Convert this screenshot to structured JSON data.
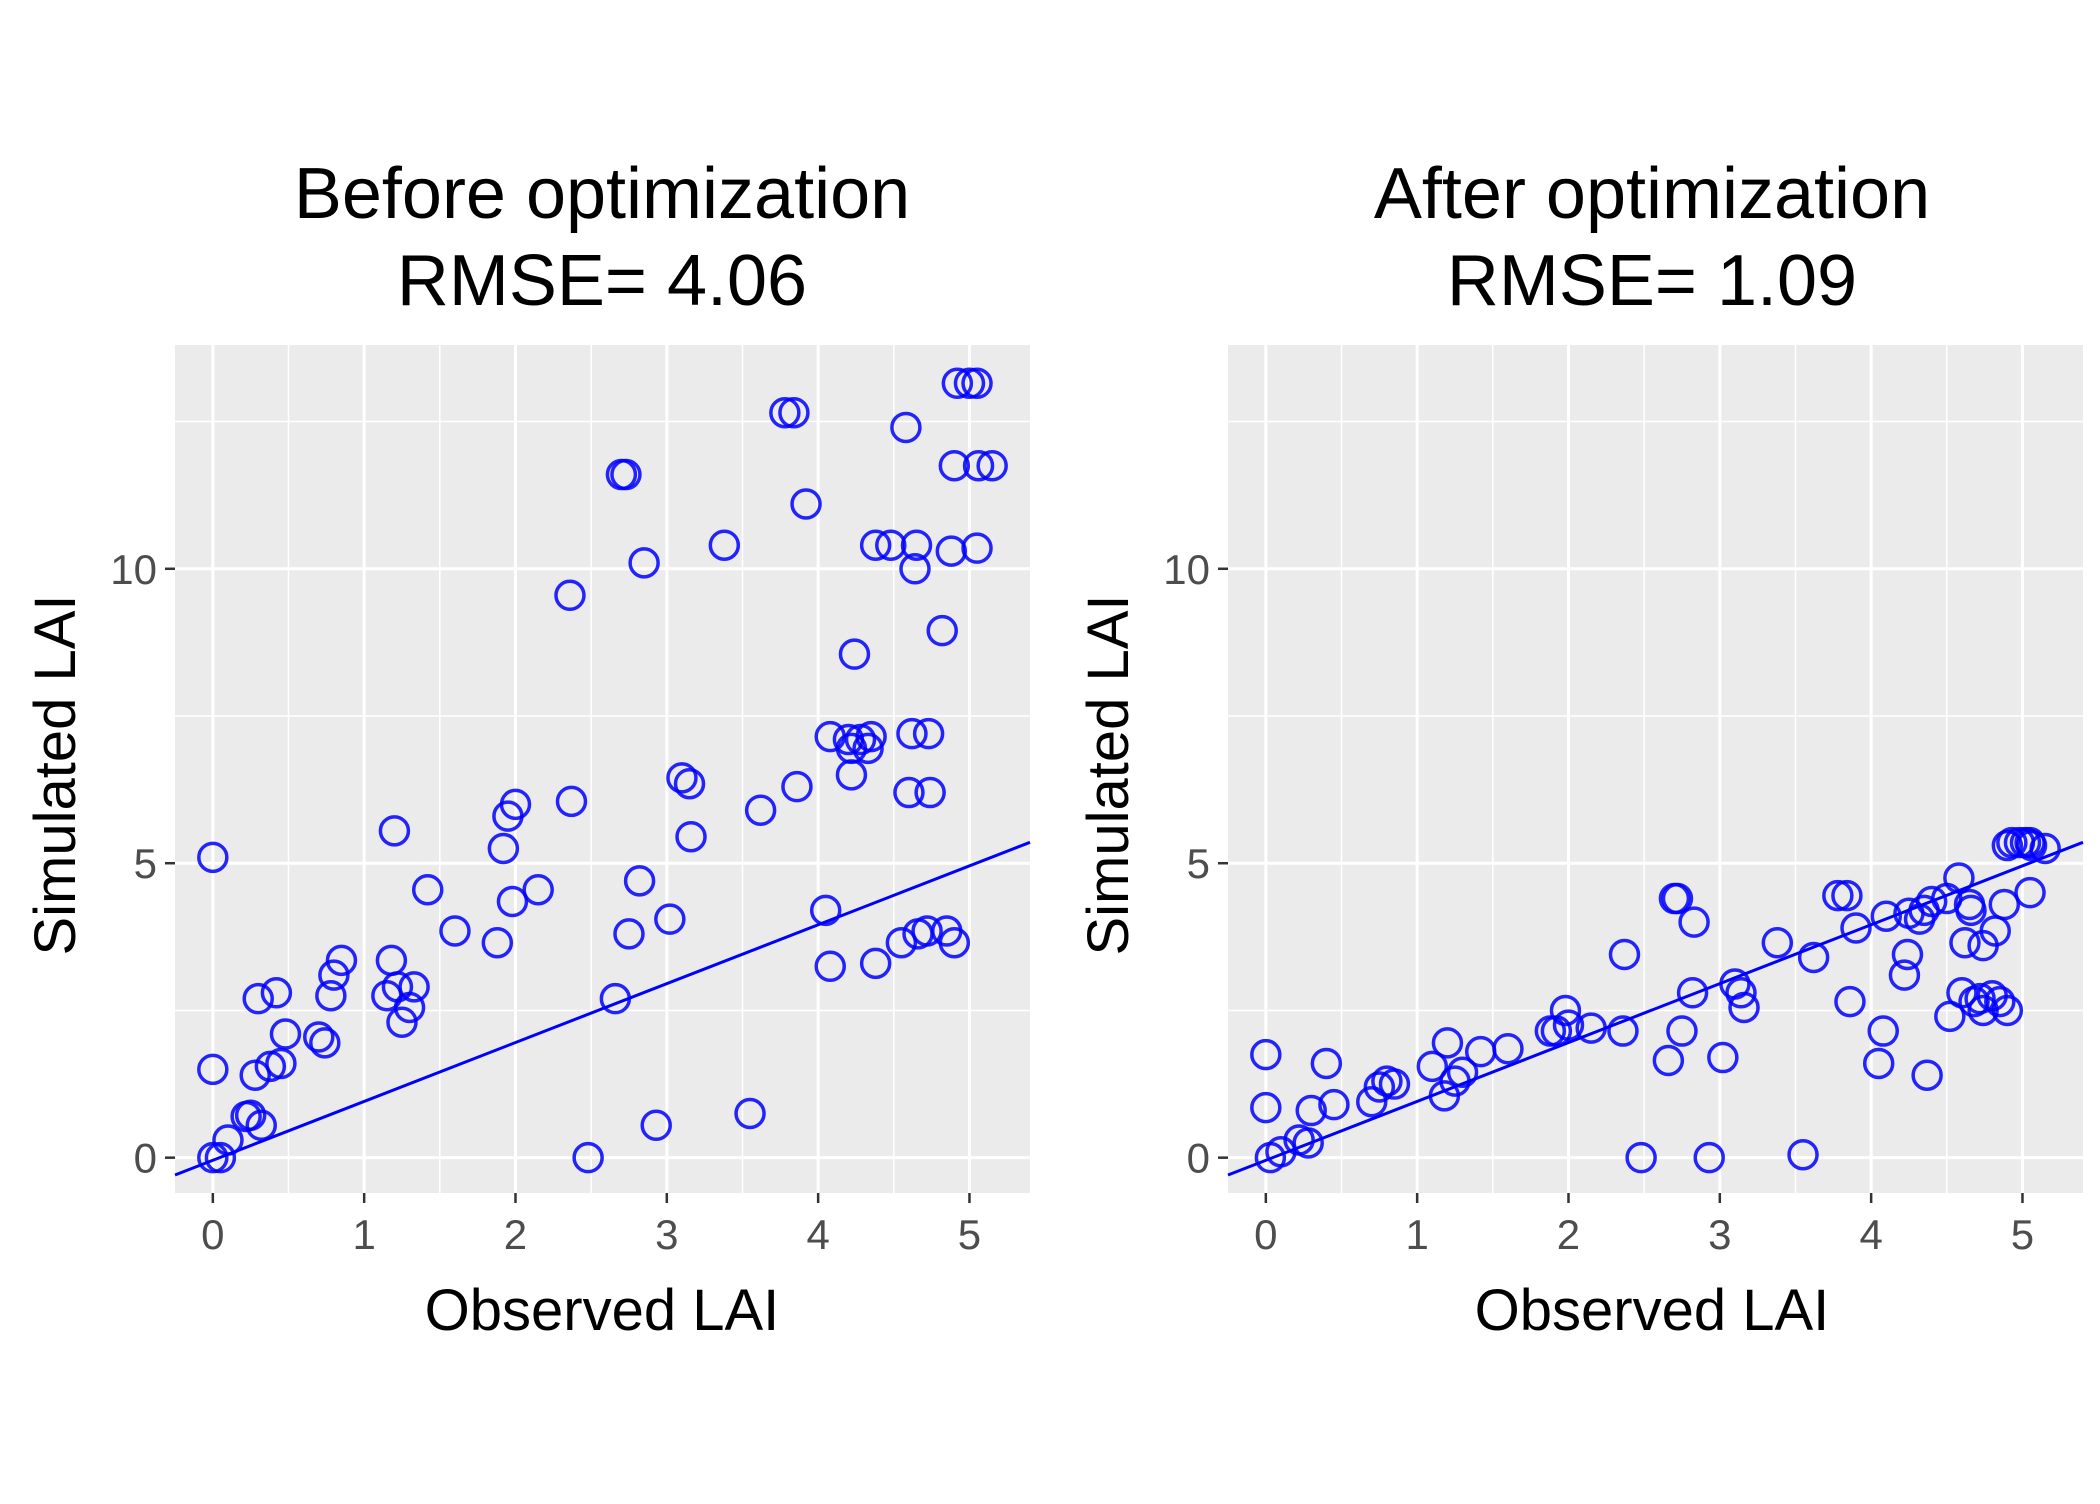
{
  "chart_data": [
    {
      "type": "scatter",
      "title": "Before optimization",
      "subtitle": "RMSE= 4.06",
      "xlabel": "Observed LAI",
      "ylabel": "Simulated LAI",
      "xlim": [
        -0.25,
        5.4
      ],
      "ylim": [
        -0.6,
        13.8
      ],
      "x_ticks": [
        "0",
        "1",
        "2",
        "3",
        "4",
        "5"
      ],
      "y_ticks": [
        "0",
        "5",
        "10"
      ],
      "grid": true,
      "legend": "none",
      "point_color": "#0000ff",
      "line_color": "#0000ff",
      "fit_line": {
        "intercept": -0.045,
        "slope": 1.0
      },
      "points": [
        [
          0.0,
          5.1
        ],
        [
          0.0,
          1.5
        ],
        [
          0.05,
          0.0
        ],
        [
          0.0,
          0.0
        ],
        [
          0.1,
          0.3
        ],
        [
          0.22,
          0.7
        ],
        [
          0.25,
          0.72
        ],
        [
          0.32,
          0.55
        ],
        [
          0.28,
          1.4
        ],
        [
          0.3,
          2.7
        ],
        [
          0.42,
          2.8
        ],
        [
          0.38,
          1.55
        ],
        [
          0.45,
          1.6
        ],
        [
          0.48,
          2.1
        ],
        [
          0.7,
          2.05
        ],
        [
          0.74,
          1.95
        ],
        [
          0.78,
          2.75
        ],
        [
          0.8,
          3.1
        ],
        [
          0.85,
          3.35
        ],
        [
          1.15,
          2.75
        ],
        [
          1.18,
          3.35
        ],
        [
          1.22,
          2.9
        ],
        [
          1.25,
          2.3
        ],
        [
          1.3,
          2.55
        ],
        [
          1.33,
          2.9
        ],
        [
          1.2,
          5.55
        ],
        [
          1.42,
          4.55
        ],
        [
          1.6,
          3.85
        ],
        [
          1.88,
          3.65
        ],
        [
          1.92,
          5.25
        ],
        [
          1.95,
          5.8
        ],
        [
          2.0,
          6.0
        ],
        [
          1.98,
          4.35
        ],
        [
          2.15,
          4.55
        ],
        [
          2.36,
          9.55
        ],
        [
          2.37,
          6.05
        ],
        [
          2.48,
          0.0
        ],
        [
          2.66,
          2.7
        ],
        [
          2.7,
          11.6
        ],
        [
          2.73,
          11.6
        ],
        [
          2.75,
          3.8
        ],
        [
          2.82,
          4.7
        ],
        [
          2.85,
          10.1
        ],
        [
          2.93,
          0.55
        ],
        [
          3.02,
          4.05
        ],
        [
          3.1,
          6.45
        ],
        [
          3.15,
          6.35
        ],
        [
          3.16,
          5.45
        ],
        [
          3.38,
          10.4
        ],
        [
          3.55,
          0.75
        ],
        [
          3.62,
          5.9
        ],
        [
          3.78,
          12.65
        ],
        [
          3.84,
          12.65
        ],
        [
          3.86,
          6.3
        ],
        [
          3.92,
          11.1
        ],
        [
          4.05,
          4.2
        ],
        [
          4.08,
          7.15
        ],
        [
          4.08,
          3.25
        ],
        [
          4.2,
          7.1
        ],
        [
          4.22,
          6.5
        ],
        [
          4.24,
          8.55
        ],
        [
          4.22,
          6.95
        ],
        [
          4.28,
          7.1
        ],
        [
          4.33,
          6.95
        ],
        [
          4.35,
          7.15
        ],
        [
          4.38,
          10.4
        ],
        [
          4.38,
          3.3
        ],
        [
          4.48,
          10.4
        ],
        [
          4.55,
          3.65
        ],
        [
          4.58,
          12.4
        ],
        [
          4.6,
          6.2
        ],
        [
          4.62,
          7.2
        ],
        [
          4.65,
          10.4
        ],
        [
          4.64,
          10.0
        ],
        [
          4.66,
          3.8
        ],
        [
          4.72,
          3.85
        ],
        [
          4.73,
          7.2
        ],
        [
          4.74,
          6.2
        ],
        [
          4.82,
          8.95
        ],
        [
          4.85,
          3.85
        ],
        [
          4.88,
          10.3
        ],
        [
          4.9,
          3.65
        ],
        [
          4.9,
          11.75
        ],
        [
          4.92,
          13.15
        ],
        [
          5.0,
          13.15
        ],
        [
          5.05,
          13.15
        ],
        [
          5.05,
          10.35
        ],
        [
          5.06,
          11.75
        ],
        [
          5.15,
          11.75
        ]
      ]
    },
    {
      "type": "scatter",
      "title": "After optimization",
      "subtitle": "RMSE= 1.09",
      "xlabel": "Observed LAI",
      "ylabel": "Simulated LAI",
      "xlim": [
        -0.25,
        5.4
      ],
      "ylim": [
        -0.6,
        13.8
      ],
      "x_ticks": [
        "0",
        "1",
        "2",
        "3",
        "4",
        "5"
      ],
      "y_ticks": [
        "0",
        "5",
        "10"
      ],
      "grid": true,
      "legend": "none",
      "point_color": "#0000ff",
      "line_color": "#0000ff",
      "fit_line": {
        "intercept": -0.045,
        "slope": 1.0
      },
      "points": [
        [
          0.0,
          1.75
        ],
        [
          0.0,
          0.85
        ],
        [
          0.03,
          0.0
        ],
        [
          0.1,
          0.1
        ],
        [
          0.22,
          0.3
        ],
        [
          0.28,
          0.25
        ],
        [
          0.3,
          0.8
        ],
        [
          0.4,
          1.6
        ],
        [
          0.45,
          0.9
        ],
        [
          0.7,
          0.95
        ],
        [
          0.75,
          1.2
        ],
        [
          0.8,
          1.3
        ],
        [
          0.85,
          1.25
        ],
        [
          1.1,
          1.55
        ],
        [
          1.18,
          1.05
        ],
        [
          1.2,
          1.95
        ],
        [
          1.25,
          1.3
        ],
        [
          1.3,
          1.45
        ],
        [
          1.42,
          1.8
        ],
        [
          1.6,
          1.85
        ],
        [
          1.88,
          2.15
        ],
        [
          1.92,
          2.15
        ],
        [
          1.98,
          2.5
        ],
        [
          2.0,
          2.25
        ],
        [
          2.15,
          2.2
        ],
        [
          2.36,
          2.15
        ],
        [
          2.37,
          3.45
        ],
        [
          2.48,
          0.0
        ],
        [
          2.66,
          1.65
        ],
        [
          2.7,
          4.4
        ],
        [
          2.72,
          4.4
        ],
        [
          2.75,
          2.15
        ],
        [
          2.83,
          4.0
        ],
        [
          2.82,
          2.8
        ],
        [
          2.93,
          0.0
        ],
        [
          3.02,
          1.7
        ],
        [
          3.1,
          2.95
        ],
        [
          3.14,
          2.8
        ],
        [
          3.16,
          2.55
        ],
        [
          3.38,
          3.65
        ],
        [
          3.55,
          0.05
        ],
        [
          3.62,
          3.4
        ],
        [
          3.78,
          4.45
        ],
        [
          3.84,
          4.45
        ],
        [
          3.86,
          2.65
        ],
        [
          3.9,
          3.9
        ],
        [
          4.05,
          1.6
        ],
        [
          4.08,
          2.15
        ],
        [
          4.1,
          4.1
        ],
        [
          4.22,
          3.1
        ],
        [
          4.24,
          3.45
        ],
        [
          4.25,
          4.15
        ],
        [
          4.32,
          4.05
        ],
        [
          4.35,
          4.2
        ],
        [
          4.37,
          1.4
        ],
        [
          4.4,
          4.35
        ],
        [
          4.5,
          4.4
        ],
        [
          4.52,
          2.4
        ],
        [
          4.58,
          4.75
        ],
        [
          4.6,
          2.8
        ],
        [
          4.62,
          3.65
        ],
        [
          4.65,
          4.3
        ],
        [
          4.66,
          4.2
        ],
        [
          4.68,
          2.65
        ],
        [
          4.72,
          2.7
        ],
        [
          4.74,
          2.5
        ],
        [
          4.74,
          3.6
        ],
        [
          4.8,
          2.75
        ],
        [
          4.82,
          3.85
        ],
        [
          4.85,
          2.65
        ],
        [
          4.88,
          4.3
        ],
        [
          4.9,
          2.5
        ],
        [
          4.9,
          5.3
        ],
        [
          4.93,
          5.35
        ],
        [
          4.98,
          5.35
        ],
        [
          5.02,
          5.35
        ],
        [
          5.05,
          5.35
        ],
        [
          5.05,
          4.5
        ],
        [
          5.06,
          5.3
        ],
        [
          5.15,
          5.25
        ]
      ]
    }
  ]
}
